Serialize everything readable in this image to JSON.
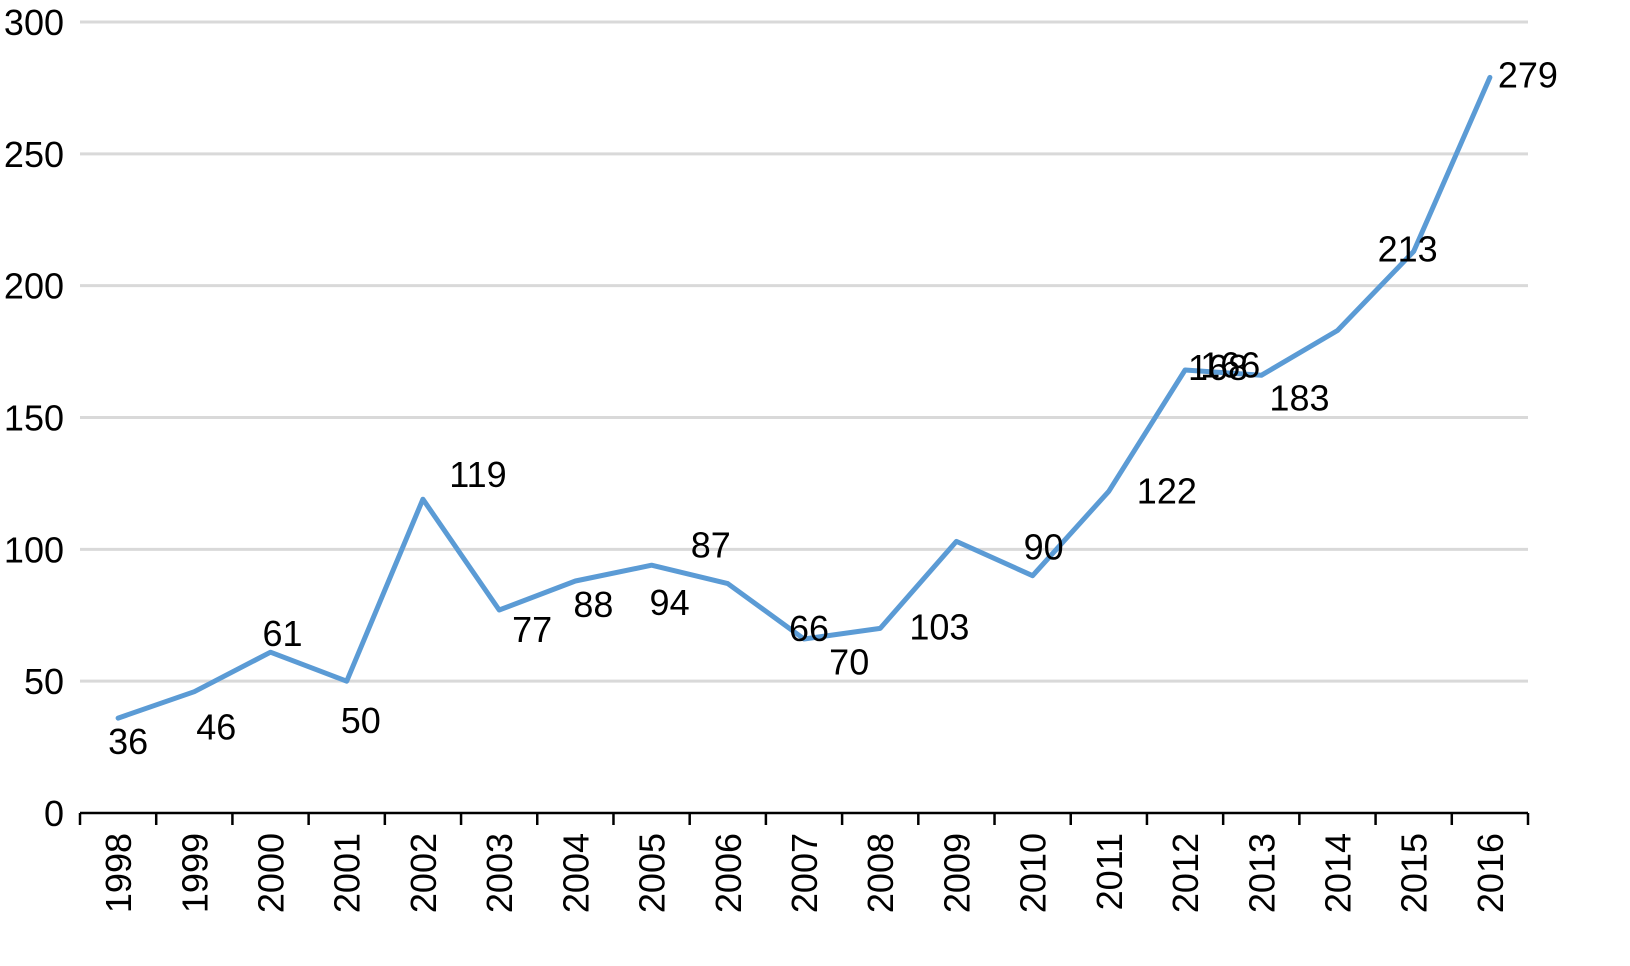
{
  "chart_data": {
    "type": "line",
    "title": "",
    "xlabel": "",
    "ylabel": "",
    "categories": [
      "1998",
      "1999",
      "2000",
      "2001",
      "2002",
      "2003",
      "2004",
      "2005",
      "2006",
      "2007",
      "2008",
      "2009",
      "2010",
      "2011",
      "2012",
      "2013",
      "2014",
      "2015",
      "2016"
    ],
    "series": [
      {
        "values": [
          36,
          46,
          61,
          50,
          119,
          77,
          88,
          94,
          87,
          66,
          70,
          103,
          90,
          122,
          168,
          166,
          183,
          213,
          279
        ],
        "color": "#5b9bd5"
      }
    ],
    "ylim": [
      0,
      300
    ],
    "yticks": [
      0,
      50,
      100,
      150,
      200,
      250,
      300
    ],
    "grid": true,
    "legend": "none",
    "colors": {
      "line": "#5b9bd5",
      "grid": "#d9d9d9",
      "axis": "#000000"
    }
  }
}
